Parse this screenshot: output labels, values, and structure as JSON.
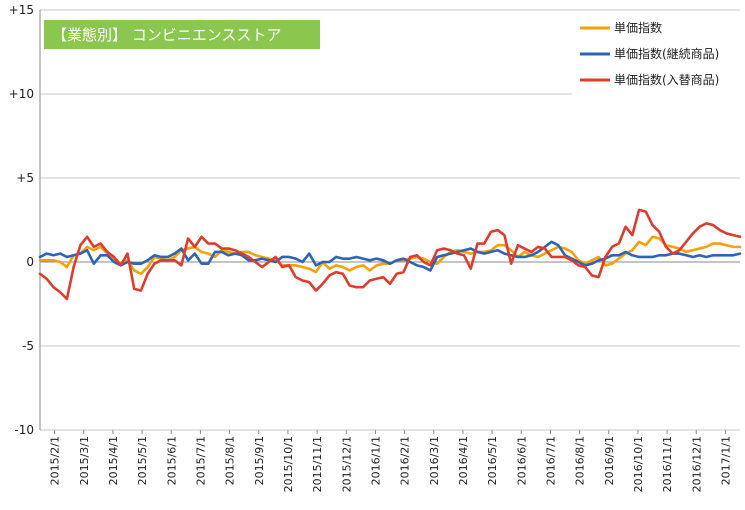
{
  "chart_data": {
    "type": "line",
    "title": "【業態別】 コンビニエンスストア",
    "title_bg_color": "#8bc64f",
    "xlabel": "",
    "ylabel": "",
    "ylim": [
      -10,
      15
    ],
    "y_ticks": [
      {
        "value": 15,
        "label": "+15"
      },
      {
        "value": 10,
        "label": "+10"
      },
      {
        "value": 5,
        "label": "+5"
      },
      {
        "value": 0,
        "label": "0"
      },
      {
        "value": -5,
        "label": "-5"
      },
      {
        "value": -10,
        "label": "-10"
      }
    ],
    "grid": "horizontal",
    "legend_position": "top-right",
    "x_tick_labels": [
      "2015/2/1",
      "2015/3/1",
      "2015/4/1",
      "2015/5/1",
      "2015/6/1",
      "2015/7/1",
      "2015/8/1",
      "2015/9/1",
      "2015/10/1",
      "2015/11/1",
      "2015/12/1",
      "2016/1/1",
      "2016/2/1",
      "2016/3/1",
      "2016/4/1",
      "2016/5/1",
      "2016/6/1",
      "2016/7/1",
      "2016/8/1",
      "2016/9/1",
      "2016/10/1",
      "2016/11/1",
      "2016/12/1",
      "2017/1/1"
    ],
    "series": [
      {
        "name": "単価指数",
        "color": "#f5a10a",
        "values": [
          0.1,
          0.1,
          0.1,
          0.0,
          -0.3,
          0.4,
          0.5,
          0.9,
          0.7,
          0.9,
          0.5,
          0.2,
          -0.1,
          0.1,
          -0.5,
          -0.7,
          -0.3,
          0.3,
          0.2,
          0.1,
          0.3,
          0.7,
          0.8,
          0.9,
          0.6,
          0.5,
          0.3,
          0.7,
          0.6,
          0.5,
          0.6,
          0.6,
          0.4,
          0.3,
          0.2,
          0.1,
          -0.2,
          -0.2,
          -0.2,
          -0.3,
          -0.4,
          -0.6,
          0.0,
          -0.4,
          -0.2,
          -0.3,
          -0.5,
          -0.3,
          -0.2,
          -0.5,
          -0.2,
          -0.1,
          -0.1,
          0.1,
          0.1,
          0.2,
          0.3,
          0.2,
          0.0,
          -0.1,
          0.3,
          0.6,
          0.7,
          0.6,
          0.5,
          0.6,
          0.6,
          0.7,
          1.0,
          1.0,
          0.7,
          0.3,
          0.6,
          0.4,
          0.3,
          0.5,
          0.7,
          0.9,
          0.8,
          0.6,
          0.1,
          -0.1,
          0.1,
          0.3,
          -0.2,
          -0.1,
          0.2,
          0.5,
          0.7,
          1.2,
          1.0,
          1.5,
          1.4,
          1.0,
          0.9,
          0.8,
          0.6,
          0.7,
          0.8,
          0.9,
          1.1,
          1.1,
          1.0,
          0.9,
          0.9
        ]
      },
      {
        "name": "単価指数(継続商品)",
        "color": "#2e63b8",
        "values": [
          0.3,
          0.5,
          0.4,
          0.5,
          0.3,
          0.4,
          0.5,
          0.7,
          -0.1,
          0.4,
          0.4,
          0.0,
          -0.2,
          0.0,
          -0.1,
          -0.1,
          0.1,
          0.4,
          0.3,
          0.3,
          0.5,
          0.8,
          0.1,
          0.5,
          -0.1,
          -0.1,
          0.6,
          0.6,
          0.4,
          0.5,
          0.4,
          0.1,
          0.1,
          0.2,
          0.1,
          0.0,
          0.3,
          0.3,
          0.2,
          0.0,
          0.5,
          -0.2,
          0.0,
          0.0,
          0.3,
          0.2,
          0.2,
          0.3,
          0.2,
          0.1,
          0.2,
          0.1,
          -0.1,
          0.1,
          0.2,
          0.0,
          -0.2,
          -0.3,
          -0.5,
          0.3,
          0.4,
          0.5,
          0.6,
          0.7,
          0.8,
          0.6,
          0.5,
          0.6,
          0.7,
          0.5,
          0.4,
          0.3,
          0.3,
          0.4,
          0.6,
          0.9,
          1.2,
          1.0,
          0.4,
          0.2,
          0.0,
          -0.2,
          -0.1,
          0.1,
          0.2,
          0.4,
          0.4,
          0.6,
          0.4,
          0.3,
          0.3,
          0.3,
          0.4,
          0.4,
          0.5,
          0.5,
          0.4,
          0.3,
          0.4,
          0.3,
          0.4,
          0.4,
          0.4,
          0.4,
          0.5
        ]
      },
      {
        "name": "単価指数(入替商品)",
        "color": "#e03c2e",
        "values": [
          -0.7,
          -1.0,
          -1.5,
          -1.8,
          -2.2,
          -0.3,
          1.0,
          1.5,
          0.9,
          1.1,
          0.6,
          0.3,
          -0.2,
          0.5,
          -1.6,
          -1.7,
          -0.7,
          -0.1,
          0.1,
          0.1,
          0.1,
          -0.2,
          1.4,
          0.9,
          1.5,
          1.1,
          1.1,
          0.8,
          0.8,
          0.7,
          0.5,
          0.3,
          0.0,
          -0.3,
          0.0,
          0.3,
          -0.3,
          -0.2,
          -0.9,
          -1.1,
          -1.2,
          -1.7,
          -1.3,
          -0.8,
          -0.6,
          -0.7,
          -1.4,
          -1.5,
          -1.5,
          -1.1,
          -1.0,
          -0.9,
          -1.3,
          -0.7,
          -0.6,
          0.3,
          0.4,
          0.0,
          -0.2,
          0.7,
          0.8,
          0.7,
          0.5,
          0.4,
          -0.4,
          1.1,
          1.1,
          1.8,
          1.9,
          1.6,
          -0.1,
          1.0,
          0.8,
          0.6,
          0.9,
          0.8,
          0.3,
          0.3,
          0.3,
          0.1,
          -0.2,
          -0.3,
          -0.8,
          -0.9,
          0.3,
          0.9,
          1.1,
          2.1,
          1.6,
          3.1,
          3.0,
          2.2,
          1.8,
          0.9,
          0.5,
          0.7,
          1.2,
          1.7,
          2.1,
          2.3,
          2.2,
          1.9,
          1.7,
          1.6,
          1.5
        ]
      }
    ]
  }
}
